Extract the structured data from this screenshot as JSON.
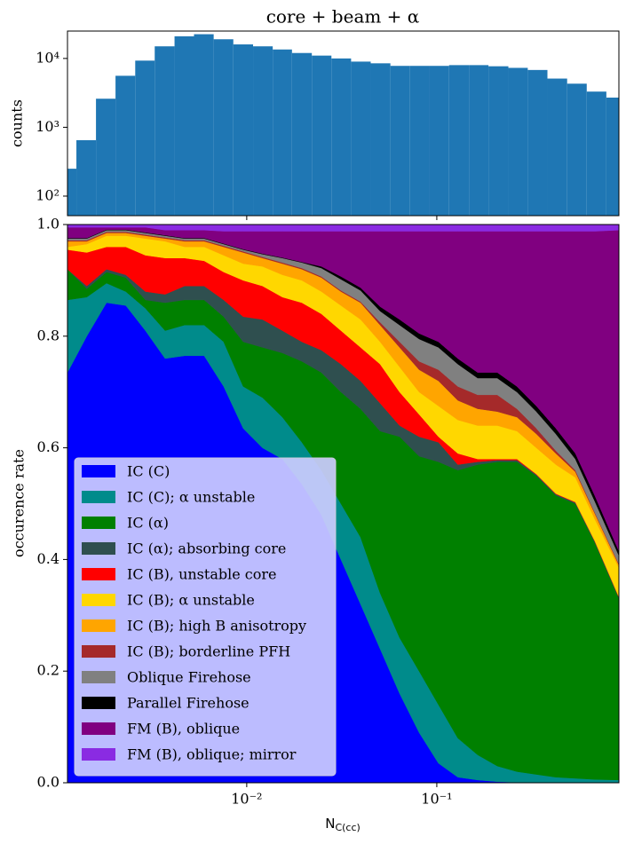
{
  "chart_data": [
    {
      "type": "histogram",
      "title": "core + beam + α",
      "ylabel": "counts",
      "color": "#1f77b4",
      "xscale": "log",
      "yscale": "log",
      "bins": [
        0.00114,
        0.00127,
        0.00161,
        0.00204,
        0.00259,
        0.00328,
        0.00417,
        0.00528,
        0.0067,
        0.0085,
        0.0108,
        0.0137,
        0.0173,
        0.022,
        0.0279,
        0.0354,
        0.0449,
        0.057,
        0.0723,
        0.0918,
        0.116,
        0.148,
        0.187,
        0.238,
        0.301,
        0.382,
        0.485,
        0.615,
        0.78,
        0.908
      ],
      "values": [
        250,
        650,
        2600,
        5600,
        9300,
        15000,
        21000,
        22500,
        19000,
        16000,
        15000,
        13500,
        12000,
        11000,
        10000,
        9000,
        8500,
        7800,
        7800,
        7800,
        8000,
        8000,
        7700,
        7300,
        6800,
        5100,
        4300,
        3300,
        2700
      ],
      "xlim": [
        0.00114,
        0.908
      ],
      "ylim": [
        52,
        25000
      ],
      "yticks": [
        {
          "value": 100,
          "label": "10²"
        },
        {
          "value": 1000,
          "label": "10³"
        },
        {
          "value": 10000,
          "label": "10⁴"
        }
      ]
    },
    {
      "type": "stackedarea",
      "xlabel": "NC(cc)",
      "ylabel": "occurence rate",
      "xscale": "log",
      "legend": "lower left",
      "x": [
        0.00114,
        0.00144,
        0.00183,
        0.00231,
        0.00293,
        0.00372,
        0.00471,
        0.00597,
        0.00756,
        0.00958,
        0.0121,
        0.0154,
        0.0195,
        0.0247,
        0.0313,
        0.0397,
        0.0503,
        0.0637,
        0.0807,
        0.102,
        0.129,
        0.164,
        0.208,
        0.264,
        0.334,
        0.423,
        0.536,
        0.679,
        0.908
      ],
      "xlim": [
        0.00114,
        0.908
      ],
      "ylim": [
        0,
        1
      ],
      "xticks": [
        {
          "value": 0.01,
          "label": "10⁻²"
        },
        {
          "value": 0.1,
          "label": "10⁻¹"
        }
      ],
      "yticks": [
        {
          "value": 0,
          "label": "0.0"
        },
        0.2,
        0.4,
        0.6,
        0.8,
        {
          "value": 1,
          "label": "1.0"
        }
      ],
      "series": [
        {
          "name": "IC (C)",
          "color": "#0000ff",
          "values": [
            0.735,
            0.8,
            0.86,
            0.855,
            0.81,
            0.76,
            0.765,
            0.765,
            0.71,
            0.635,
            0.6,
            0.58,
            0.535,
            0.48,
            0.4,
            0.32,
            0.24,
            0.16,
            0.09,
            0.035,
            0.01,
            0.005,
            0.002,
            0.001,
            0,
            0,
            0,
            0,
            0
          ]
        },
        {
          "name": "IC (C); α unstable",
          "color": "#008b8b",
          "values": [
            0.13,
            0.07,
            0.035,
            0.025,
            0.04,
            0.05,
            0.055,
            0.055,
            0.08,
            0.075,
            0.09,
            0.075,
            0.075,
            0.08,
            0.1,
            0.12,
            0.1,
            0.1,
            0.11,
            0.105,
            0.07,
            0.045,
            0.028,
            0.019,
            0.015,
            0.01,
            0.008,
            0.006,
            0.005
          ]
        },
        {
          "name": "IC (α)",
          "color": "#008000",
          "values": [
            0.055,
            0.015,
            0.02,
            0.025,
            0.015,
            0.05,
            0.045,
            0.045,
            0.045,
            0.08,
            0.09,
            0.115,
            0.145,
            0.175,
            0.2,
            0.23,
            0.29,
            0.36,
            0.385,
            0.435,
            0.48,
            0.52,
            0.545,
            0.555,
            0.535,
            0.505,
            0.492,
            0.424,
            0.325
          ]
        },
        {
          "name": "IC (α); absorbing core",
          "color": "#2f4f4f",
          "values": [
            0,
            0.005,
            0.005,
            0.005,
            0.015,
            0.015,
            0.025,
            0.025,
            0.03,
            0.045,
            0.05,
            0.04,
            0.035,
            0.04,
            0.05,
            0.05,
            0.05,
            0.02,
            0.035,
            0.035,
            0.01,
            0.005,
            0.003,
            0.003,
            0.002,
            0.002,
            0.002,
            0.002,
            0.002
          ]
        },
        {
          "name": "IC (B), unstable core",
          "color": "#ff0000",
          "values": [
            0.035,
            0.06,
            0.04,
            0.05,
            0.065,
            0.065,
            0.05,
            0.045,
            0.05,
            0.065,
            0.06,
            0.06,
            0.07,
            0.065,
            0.06,
            0.06,
            0.07,
            0.06,
            0.04,
            0.01,
            0.02,
            0.005,
            0.002,
            0.002,
            0.001,
            0.001,
            0.001,
            0.001,
            0.001
          ]
        },
        {
          "name": "IC (B); α unstable",
          "color": "#ffd700",
          "values": [
            0.005,
            0.015,
            0.02,
            0.02,
            0.03,
            0.03,
            0.02,
            0.025,
            0.03,
            0.03,
            0.035,
            0.04,
            0.04,
            0.04,
            0.045,
            0.05,
            0.04,
            0.045,
            0.04,
            0.055,
            0.06,
            0.06,
            0.06,
            0.05,
            0.047,
            0.052,
            0.044,
            0.039,
            0.052
          ]
        },
        {
          "name": "IC (B); high B anisotropy",
          "color": "#ffa500",
          "values": [
            0.01,
            0.005,
            0.005,
            0.005,
            0.005,
            0.005,
            0.01,
            0.01,
            0.015,
            0.02,
            0.015,
            0.02,
            0.02,
            0.025,
            0.025,
            0.03,
            0.03,
            0.035,
            0.04,
            0.045,
            0.035,
            0.03,
            0.025,
            0.025,
            0.025,
            0.02,
            0.01,
            0.01,
            0.005
          ]
        },
        {
          "name": "IC (B); borderline PFH",
          "color": "#a52a2a",
          "values": [
            0.002,
            0.002,
            0.002,
            0.002,
            0.002,
            0.002,
            0.002,
            0.002,
            0.002,
            0.002,
            0.002,
            0.002,
            0.002,
            0.002,
            0.002,
            0.002,
            0.005,
            0.01,
            0.015,
            0.02,
            0.025,
            0.025,
            0.03,
            0.015,
            0.01,
            0.005,
            0.003,
            0.002,
            0.002
          ]
        },
        {
          "name": "Oblique Firehose",
          "color": "#808080",
          "values": [
            0.003,
            0.003,
            0.003,
            0.003,
            0.003,
            0.003,
            0.003,
            0.003,
            0.003,
            0.003,
            0.005,
            0.008,
            0.01,
            0.015,
            0.02,
            0.02,
            0.02,
            0.03,
            0.04,
            0.04,
            0.04,
            0.03,
            0.03,
            0.03,
            0.03,
            0.03,
            0.02,
            0.02,
            0.015
          ]
        },
        {
          "name": "Parallel Firehose",
          "color": "#000000",
          "values": [
            0.001,
            0.001,
            0.001,
            0.001,
            0.001,
            0.001,
            0.001,
            0.001,
            0.001,
            0.001,
            0.001,
            0.001,
            0.001,
            0.003,
            0.005,
            0.005,
            0.008,
            0.01,
            0.01,
            0.01,
            0.01,
            0.01,
            0.01,
            0.01,
            0.01,
            0.01,
            0.01,
            0.01,
            0.008
          ]
        },
        {
          "name": "FM (B), oblique",
          "color": "#800080",
          "values": [
            0.019,
            0.019,
            0.004,
            0.004,
            0.009,
            0.009,
            0.014,
            0.014,
            0.022,
            0.032,
            0.04,
            0.047,
            0.055,
            0.063,
            0.081,
            0.101,
            0.135,
            0.158,
            0.183,
            0.198,
            0.228,
            0.253,
            0.253,
            0.278,
            0.313,
            0.353,
            0.398,
            0.474,
            0.575
          ]
        },
        {
          "name": "FM (B), oblique; mirror",
          "color": "#8a2be2",
          "values": [
            0.005,
            0.005,
            0.005,
            0.005,
            0.005,
            0.01,
            0.01,
            0.01,
            0.012,
            0.012,
            0.012,
            0.012,
            0.012,
            0.012,
            0.012,
            0.012,
            0.012,
            0.012,
            0.012,
            0.012,
            0.012,
            0.012,
            0.012,
            0.012,
            0.012,
            0.012,
            0.012,
            0.012,
            0.01
          ]
        }
      ]
    }
  ]
}
